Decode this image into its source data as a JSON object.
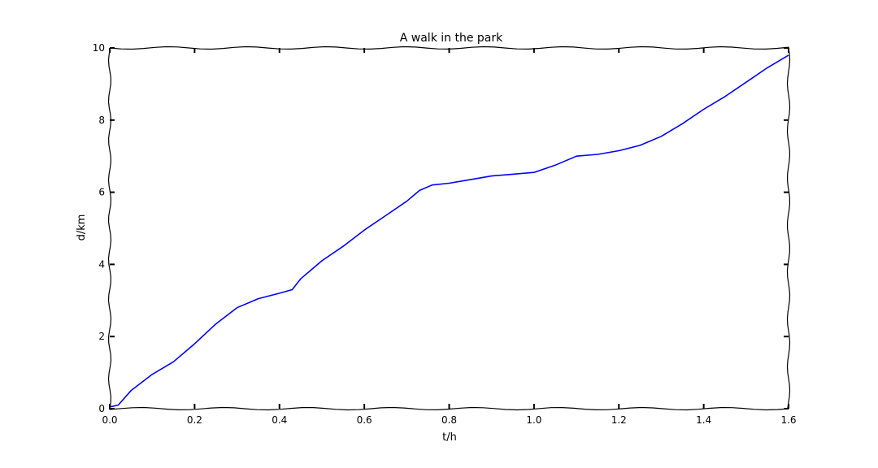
{
  "chart_data": {
    "type": "line",
    "title": "A walk in the park",
    "xlabel": "t/h",
    "ylabel": "d/km",
    "xlim": [
      0,
      1.6
    ],
    "ylim": [
      0,
      10
    ],
    "grid": false,
    "x_ticks": [
      "0.0",
      "0.2",
      "0.4",
      "0.6",
      "0.8",
      "1.0",
      "1.2",
      "1.4",
      "1.6"
    ],
    "y_ticks": [
      "0",
      "2",
      "4",
      "6",
      "8",
      "10"
    ],
    "series": [
      {
        "color": "#0000ff",
        "x": [
          0.0,
          0.02,
          0.05,
          0.1,
          0.15,
          0.2,
          0.25,
          0.3,
          0.35,
          0.4,
          0.43,
          0.45,
          0.5,
          0.55,
          0.6,
          0.65,
          0.7,
          0.73,
          0.76,
          0.8,
          0.85,
          0.9,
          0.95,
          1.0,
          1.05,
          1.1,
          1.15,
          1.2,
          1.25,
          1.3,
          1.35,
          1.4,
          1.45,
          1.5,
          1.55,
          1.6
        ],
        "y": [
          0.05,
          0.1,
          0.5,
          0.95,
          1.3,
          1.8,
          2.35,
          2.8,
          3.05,
          3.2,
          3.3,
          3.6,
          4.1,
          4.5,
          4.95,
          5.35,
          5.75,
          6.05,
          6.2,
          6.25,
          6.35,
          6.45,
          6.5,
          6.55,
          6.75,
          7.0,
          7.05,
          7.15,
          7.3,
          7.55,
          7.9,
          8.3,
          8.65,
          9.05,
          9.45,
          9.8
        ]
      }
    ]
  }
}
